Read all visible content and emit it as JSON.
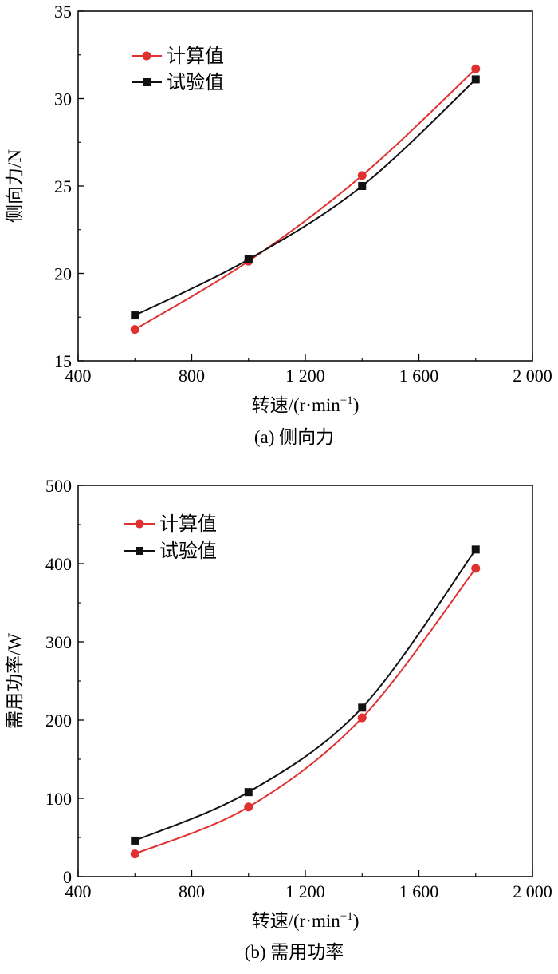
{
  "chart_data": [
    {
      "type": "line",
      "caption": "(a) 侧向力",
      "xlabel": "转速/(r·min",
      "xlabel_sup": "−1",
      "xlabel_tail": ")",
      "ylabel": "侧向力/N",
      "xlim": [
        400,
        2000
      ],
      "ylim": [
        15,
        35
      ],
      "x_ticks": [
        400,
        800,
        1200,
        1600,
        2000
      ],
      "x_tick_labels": [
        "400",
        "800",
        "1 200",
        "1 600",
        "2 000"
      ],
      "y_ticks": [
        15,
        20,
        25,
        30,
        35
      ],
      "y_tick_labels": [
        "15",
        "20",
        "25",
        "30",
        "35"
      ],
      "legend_position": "top-left",
      "series": [
        {
          "name": "计算值",
          "color": "#e03030",
          "marker": "circle",
          "x": [
            600,
            1000,
            1400,
            1800
          ],
          "values": [
            16.8,
            20.7,
            25.6,
            31.7
          ]
        },
        {
          "name": "试验值",
          "color": "#111111",
          "marker": "square",
          "x": [
            600,
            1000,
            1400,
            1800
          ],
          "values": [
            17.6,
            20.8,
            25.0,
            31.1
          ]
        }
      ]
    },
    {
      "type": "line",
      "caption": "(b) 需用功率",
      "xlabel": "转速/(r·min",
      "xlabel_sup": "−1",
      "xlabel_tail": ")",
      "ylabel": "需用功率/W",
      "xlim": [
        400,
        2000
      ],
      "ylim": [
        0,
        500
      ],
      "x_ticks": [
        400,
        800,
        1200,
        1600,
        2000
      ],
      "x_tick_labels": [
        "400",
        "800",
        "1 200",
        "1 600",
        "2 000"
      ],
      "y_ticks": [
        0,
        100,
        200,
        300,
        400,
        500
      ],
      "y_tick_labels": [
        "0",
        "100",
        "200",
        "300",
        "400",
        "500"
      ],
      "legend_position": "top-left",
      "series": [
        {
          "name": "计算值",
          "color": "#e03030",
          "marker": "circle",
          "x": [
            600,
            1000,
            1400,
            1800
          ],
          "values": [
            29,
            89,
            203,
            394
          ]
        },
        {
          "name": "试验值",
          "color": "#111111",
          "marker": "square",
          "x": [
            600,
            1000,
            1400,
            1800
          ],
          "values": [
            46,
            108,
            216,
            418
          ]
        }
      ]
    }
  ]
}
